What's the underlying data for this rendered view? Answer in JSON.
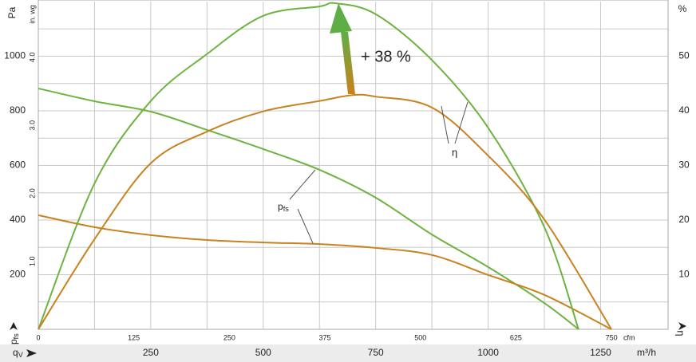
{
  "chart_data": {
    "type": "line",
    "xlim": [
      0,
      1400
    ],
    "xticks": [
      250,
      500,
      750,
      1000,
      1250
    ],
    "x_unit": "m³/h",
    "x_label": {
      "symbol": "q",
      "sub": "V"
    },
    "x2lim": [
      0,
      824
    ],
    "x2ticks": [
      0,
      125,
      250,
      375,
      500,
      625,
      750
    ],
    "x2_unit": "cfm",
    "xgrid": [
      125,
      250,
      375,
      500,
      625,
      750,
      875,
      1000,
      1125,
      1250
    ],
    "ylim": [
      0,
      1200
    ],
    "yticks": [
      200,
      400,
      600,
      800,
      1000
    ],
    "ygrid": [
      100,
      200,
      300,
      400,
      500,
      600,
      700,
      800,
      900,
      1000,
      1100
    ],
    "y_unit": "Pa",
    "y_label": {
      "symbol": "p",
      "sub": "fs"
    },
    "y3lim": [
      0,
      4.82
    ],
    "y3ticks": [
      {
        "value": 1,
        "label": "1.0"
      },
      {
        "value": 2,
        "label": "2.0"
      },
      {
        "value": 3,
        "label": "3.0"
      },
      {
        "value": 4,
        "label": "4.0"
      }
    ],
    "y3_unit": "in. wg",
    "y2lim": [
      0,
      60
    ],
    "y2ticks": [
      10,
      20,
      30,
      40,
      50
    ],
    "y2_unit": "%",
    "y2_label": "η",
    "series": [
      {
        "color": "#6db33f",
        "axis": "y",
        "x": [
          0,
          125,
          250,
          375,
          500,
          625,
          750,
          875,
          1000,
          1125,
          1201
        ],
        "values": [
          882,
          835,
          797,
          730,
          660,
          584,
          482,
          347,
          228,
          96,
          0
        ]
      },
      {
        "color": "#c8821e",
        "axis": "y",
        "x": [
          0,
          125,
          250,
          375,
          500,
          625,
          750,
          875,
          1000,
          1125,
          1274
        ],
        "values": [
          418,
          374,
          345,
          327,
          318,
          312,
          298,
          272,
          199,
          126,
          0
        ]
      },
      {
        "color": "#6db33f",
        "axis": "y2",
        "x": [
          0,
          125,
          250,
          375,
          500,
          625,
          660,
          750,
          875,
          1000,
          1125,
          1201
        ],
        "values": [
          0,
          26.7,
          41.8,
          50.4,
          57.4,
          59.1,
          59.7,
          57.7,
          49.3,
          36.9,
          18.7,
          0
        ]
      },
      {
        "color": "#c8821e",
        "axis": "y2",
        "x": [
          0,
          125,
          250,
          375,
          500,
          625,
          700,
          750,
          875,
          1000,
          1125,
          1274
        ],
        "values": [
          0,
          16.5,
          30.4,
          36.2,
          39.9,
          41.8,
          42.9,
          42.6,
          40.6,
          31.8,
          20.1,
          0
        ]
      }
    ],
    "annotations": {
      "pressure": {
        "symbol": "p",
        "sub": "fs"
      },
      "efficiency": "η",
      "gain": "+ 38 %"
    }
  }
}
